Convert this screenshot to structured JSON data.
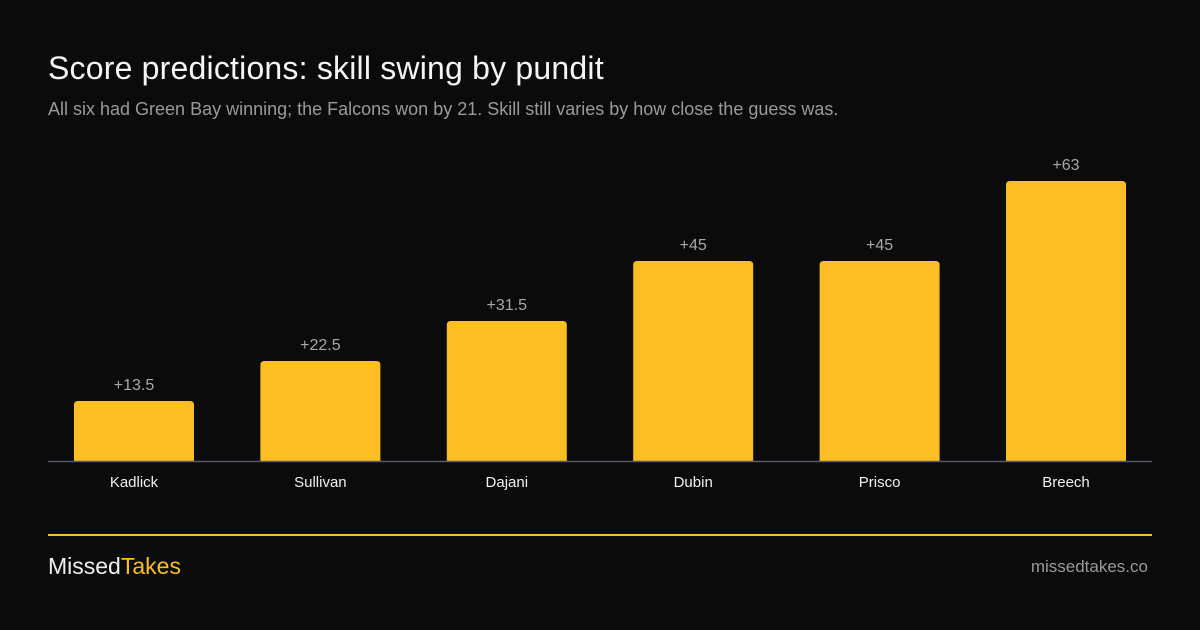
{
  "title": "Score predictions: skill swing by pundit",
  "subtitle": "All six had Green Bay winning; the Falcons won by 21. Skill still varies by how close the guess was.",
  "colors": {
    "background": "#0b0b0b",
    "bar": "#fbbf24",
    "accent": "#f6c02a",
    "muted_text": "#9a9a9a",
    "axis": "#5a5a66"
  },
  "chart_data": {
    "type": "bar",
    "categories": [
      "Kadlick",
      "Sullivan",
      "Dajani",
      "Dubin",
      "Prisco",
      "Breech"
    ],
    "values": [
      13.5,
      22.5,
      31.5,
      45,
      45,
      63
    ],
    "value_labels": [
      "+13.5",
      "+22.5",
      "+31.5",
      "+45",
      "+45",
      "+63"
    ],
    "ylim": [
      0,
      63
    ],
    "grid": false,
    "legend": "none"
  },
  "footer": {
    "brand_part1": "Missed",
    "brand_part2": "Takes",
    "site": "missedtakes.co"
  }
}
